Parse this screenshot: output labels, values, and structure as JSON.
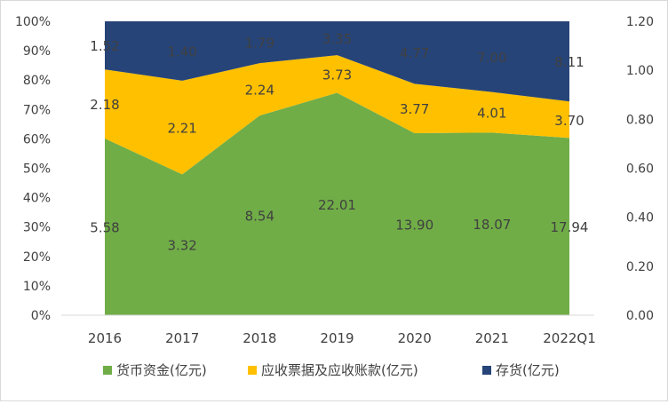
{
  "chart_data": {
    "type": "area",
    "stacked_percent": true,
    "categories": [
      "2016",
      "2017",
      "2018",
      "2019",
      "2020",
      "2021",
      "2022Q1"
    ],
    "series": [
      {
        "name": "货币资金(亿元)",
        "color": "#70ad47",
        "values": [
          5.58,
          3.32,
          8.54,
          22.01,
          13.9,
          18.07,
          17.94
        ],
        "labels": [
          "5.58",
          "3.32",
          "8.54",
          "22.01",
          "13.90",
          "18.07",
          "17.94"
        ]
      },
      {
        "name": "应收票据及应收账款(亿元)",
        "color": "#ffc000",
        "values": [
          2.18,
          2.21,
          2.24,
          3.73,
          3.77,
          4.01,
          3.7
        ],
        "labels": [
          "2.18",
          "2.21",
          "2.24",
          "3.73",
          "3.77",
          "4.01",
          "3.70"
        ]
      },
      {
        "name": "存货(亿元)",
        "color": "#264478",
        "values": [
          1.52,
          1.4,
          1.79,
          3.35,
          4.77,
          7.0,
          8.11
        ],
        "labels": [
          "1.52",
          "1.40",
          "1.79",
          "3.35",
          "4.77",
          "7.00",
          "8.11"
        ]
      }
    ],
    "y_left": {
      "min": 0,
      "max": 100,
      "ticks": [
        "0%",
        "10%",
        "20%",
        "30%",
        "40%",
        "50%",
        "60%",
        "70%",
        "80%",
        "90%",
        "100%"
      ]
    },
    "y_right": {
      "min": 0,
      "max": 1.2,
      "ticks": [
        "0.00",
        "0.20",
        "0.40",
        "0.60",
        "0.80",
        "1.00",
        "1.20"
      ]
    },
    "legend_position": "bottom",
    "grid": false
  }
}
